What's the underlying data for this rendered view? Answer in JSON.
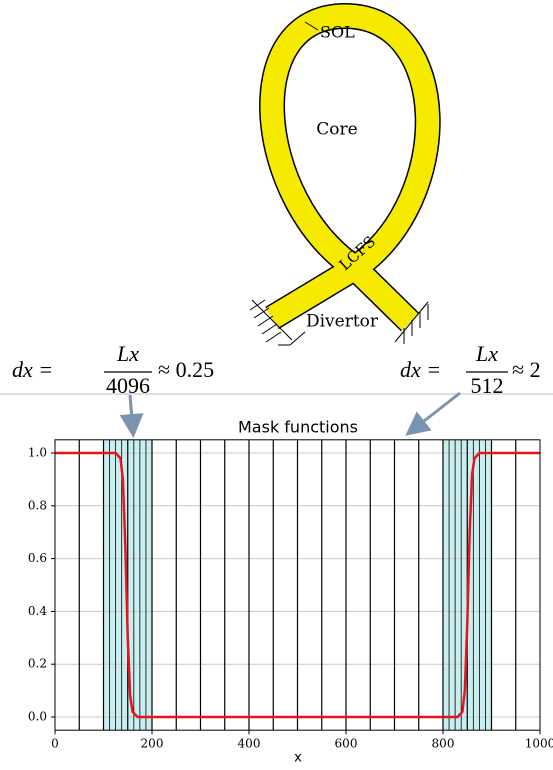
{
  "diagram": {
    "labels": {
      "sol": "SOL",
      "core": "Core",
      "lcfs": "LCFS",
      "divertor": "Divertor"
    }
  },
  "annotations": [
    {
      "lhs": "dx =",
      "numerator": "Lx",
      "denominator": "4096",
      "rhs": "≈ 0.25"
    },
    {
      "lhs": "dx =",
      "numerator": "Lx",
      "denominator": "512",
      "rhs": "≈ 2"
    }
  ],
  "chart_data": {
    "type": "line",
    "title": "Mask functions",
    "x_label": "x",
    "xlim": [
      0,
      1000
    ],
    "ylim": [
      -0.05,
      1.05
    ],
    "xticks": [
      0,
      200,
      400,
      600,
      800,
      1000
    ],
    "yticks": [
      {
        "value": 0,
        "label": "0.0"
      },
      {
        "value": 0.2,
        "label": "0.2"
      },
      {
        "value": 0.4,
        "label": "0.4"
      },
      {
        "value": 0.6,
        "label": "0.6"
      },
      {
        "value": 0.8,
        "label": "0.8"
      },
      {
        "value": 1,
        "label": "1.0"
      }
    ],
    "grid": true,
    "mesh_lines": [
      50,
      100,
      150,
      200,
      250,
      300,
      350,
      400,
      450,
      500,
      550,
      600,
      650,
      700,
      750,
      800,
      850,
      900,
      950
    ],
    "fine_mesh_lines": [
      112.5,
      125,
      137.5,
      162.5,
      175,
      187.5,
      812.5,
      825,
      837.5,
      862.5,
      875,
      887.5
    ],
    "refined_regions": [
      [
        100,
        200
      ],
      [
        800,
        900
      ]
    ],
    "region_color": "#c8eef0",
    "mesh_color": "#000000",
    "series": [
      {
        "color": "#e8141a",
        "x": [
          0,
          125,
          135,
          140,
          145,
          150,
          155,
          160,
          170,
          830,
          840,
          845,
          850,
          855,
          860,
          865,
          875,
          1000
        ],
        "values": [
          1,
          1,
          0.98,
          0.9,
          0.65,
          0.3,
          0.08,
          0.02,
          0,
          0,
          0.02,
          0.1,
          0.35,
          0.7,
          0.92,
          0.98,
          1,
          1
        ]
      }
    ]
  }
}
